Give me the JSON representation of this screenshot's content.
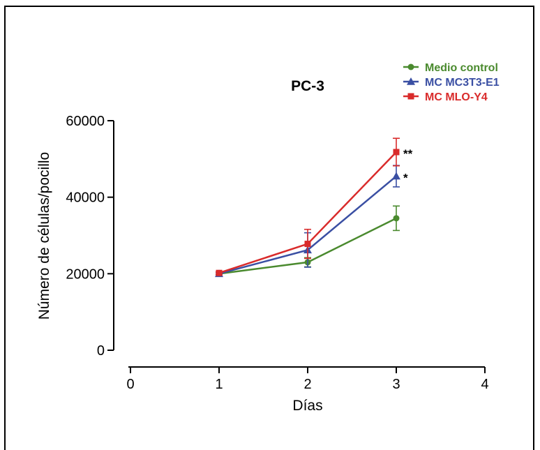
{
  "chart_data": {
    "type": "line",
    "title": "PC-3",
    "xlabel": "Días",
    "ylabel": "Número de células/pocillo",
    "xlim": [
      0,
      4
    ],
    "ylim": [
      0,
      60000
    ],
    "xticks": [
      0,
      1,
      2,
      3,
      4
    ],
    "yticks": [
      0,
      20000,
      40000,
      60000
    ],
    "xtick_labels": [
      "0",
      "1",
      "2",
      "3",
      "4"
    ],
    "ytick_labels": [
      "0",
      "20000",
      "40000",
      "60000"
    ],
    "grid": false,
    "legend": "top-right",
    "series": [
      {
        "name": "Medio control",
        "color": "#4a8a2e",
        "marker": "circle",
        "x": [
          1,
          2,
          3
        ],
        "y": [
          20000,
          23000,
          34500
        ],
        "err": [
          300,
          1200,
          3200
        ]
      },
      {
        "name": "MC MC3T3-E1",
        "color": "#3a4fa3",
        "marker": "triangle",
        "x": [
          1,
          2,
          3
        ],
        "y": [
          20000,
          26200,
          45500
        ],
        "err": [
          300,
          4500,
          2800
        ]
      },
      {
        "name": "MC MLO-Y4",
        "color": "#d92b2b",
        "marker": "square",
        "x": [
          1,
          2,
          3
        ],
        "y": [
          20200,
          27800,
          51800
        ],
        "err": [
          300,
          3800,
          3600
        ]
      }
    ],
    "annotations": [
      {
        "text": "**",
        "x": 3,
        "y": 51800,
        "series": 2
      },
      {
        "text": "*",
        "x": 3,
        "y": 45500,
        "series": 1
      }
    ]
  }
}
